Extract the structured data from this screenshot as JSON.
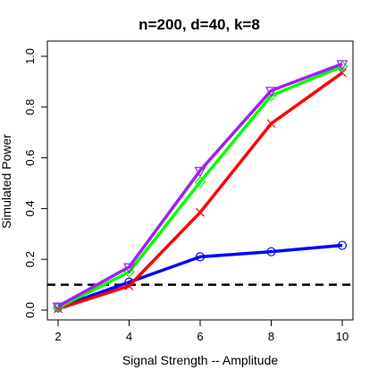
{
  "chart_data": {
    "type": "line",
    "title": "n=200, d=40, k=8",
    "xlabel": "Signal Strength -- Amplitude",
    "ylabel": "Simulated Power",
    "xlim": [
      2,
      10
    ],
    "ylim": [
      0,
      1.0
    ],
    "x": [
      2,
      4,
      6,
      8,
      10
    ],
    "x_ticks": [
      "2",
      "4",
      "6",
      "8",
      "10"
    ],
    "y_ticks": [
      "0.0",
      "0.2",
      "0.4",
      "0.6",
      "0.8",
      "1.0"
    ],
    "grid": false,
    "reference_line": {
      "y": 0.1,
      "style": "dashed",
      "color": "#000000"
    },
    "series": [
      {
        "color": "#0000ff",
        "marker": "circle",
        "values": [
          0.01,
          0.11,
          0.21,
          0.23,
          0.255
        ]
      },
      {
        "color": "#ff0000",
        "marker": "x",
        "values": [
          0.005,
          0.095,
          0.385,
          0.735,
          0.935
        ]
      },
      {
        "color": "#00ff00",
        "marker": "diamond",
        "values": [
          0.01,
          0.15,
          0.505,
          0.845,
          0.96
        ]
      },
      {
        "color": "#a020f0",
        "marker": "triangle-down",
        "values": [
          0.015,
          0.17,
          0.55,
          0.865,
          0.97
        ]
      }
    ]
  }
}
